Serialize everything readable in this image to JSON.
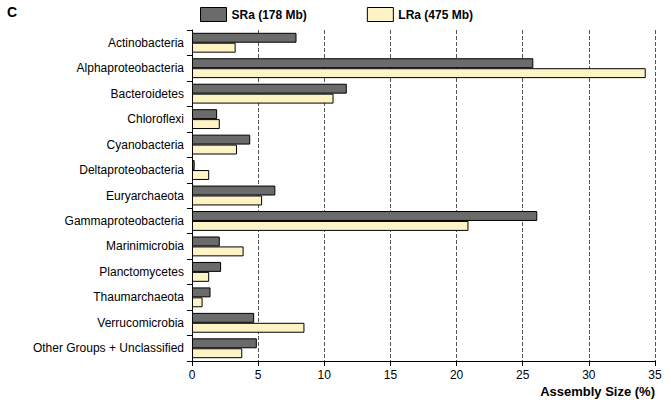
{
  "chart_data": {
    "type": "bar",
    "orientation": "horizontal",
    "title": "C",
    "xlabel": "Assembly Size (%)",
    "categories": [
      "Actinobacteria",
      "Alphaproteobacteria",
      "Bacteroidetes",
      "Chloroflexi",
      "Cyanobacteria",
      "Deltaproteobacteria",
      "Euryarchaeota",
      "Gammaproteobacteria",
      "Marinimicrobia",
      "Planctomycetes",
      "Thaumarchaeota",
      "Verrucomicrobia",
      "Other Groups + Unclassified"
    ],
    "series": [
      {
        "name": "SRa (178 Mb)",
        "color": "#6b6b6b",
        "values": [
          7.9,
          25.8,
          11.7,
          1.9,
          4.4,
          0.2,
          6.3,
          26.1,
          2.1,
          2.2,
          1.4,
          4.7,
          4.9
        ]
      },
      {
        "name": "LRa (475 Mb)",
        "color": "#fdf3c4",
        "values": [
          3.3,
          34.3,
          10.7,
          2.1,
          3.4,
          1.3,
          5.3,
          20.9,
          3.9,
          1.3,
          0.8,
          8.5,
          3.8
        ]
      }
    ],
    "xlim": [
      0,
      35
    ],
    "xticks": [
      0,
      5,
      10,
      15,
      20,
      25,
      30,
      35
    ],
    "grid": true,
    "legend": "top"
  }
}
